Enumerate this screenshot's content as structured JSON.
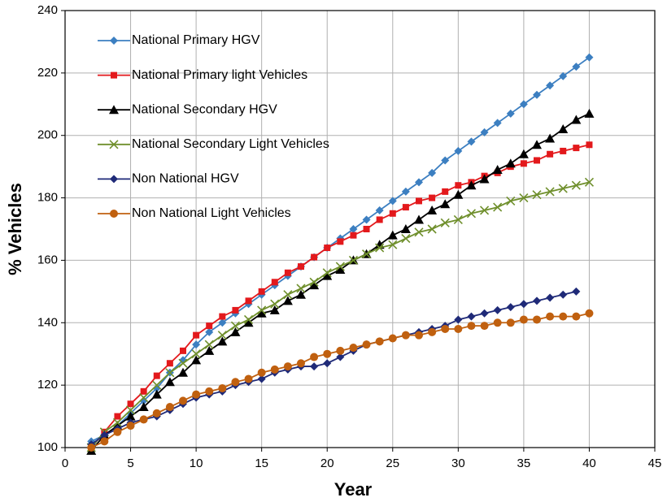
{
  "chart_data": {
    "type": "line",
    "xlabel": "Year",
    "ylabel": "% Vehicles",
    "x": [
      2,
      3,
      4,
      5,
      6,
      7,
      8,
      9,
      10,
      11,
      12,
      13,
      14,
      15,
      16,
      17,
      18,
      19,
      20,
      21,
      22,
      23,
      24,
      25,
      26,
      27,
      28,
      29,
      30,
      31,
      32,
      33,
      34,
      35,
      36,
      37,
      38,
      39,
      40
    ],
    "series": [
      {
        "name": "National Primary HGV",
        "color": "#3c7fc1",
        "marker": "diamond",
        "values": [
          102,
          104,
          107,
          111,
          115,
          119,
          124,
          128,
          133,
          137,
          140,
          143,
          146,
          149,
          152,
          155,
          158,
          161,
          164,
          167,
          170,
          173,
          176,
          179,
          182,
          185,
          188,
          192,
          195,
          198,
          201,
          204,
          207,
          210,
          213,
          216,
          219,
          222,
          225
        ]
      },
      {
        "name": "National Primary light Vehicles",
        "color": "#e3191c",
        "marker": "square",
        "values": [
          100,
          105,
          110,
          114,
          118,
          123,
          127,
          131,
          136,
          139,
          142,
          144,
          147,
          150,
          153,
          156,
          158,
          161,
          164,
          166,
          168,
          170,
          173,
          175,
          177,
          179,
          180,
          182,
          184,
          185,
          187,
          188,
          190,
          191,
          192,
          194,
          195,
          196,
          197
        ]
      },
      {
        "name": "National Secondary HGV",
        "color": "#000000",
        "marker": "triangle",
        "values": [
          99,
          104,
          107,
          110,
          113,
          117,
          121,
          124,
          128,
          131,
          134,
          137,
          140,
          143,
          144,
          147,
          149,
          152,
          155,
          157,
          160,
          162,
          165,
          168,
          170,
          173,
          176,
          178,
          181,
          184,
          186,
          189,
          191,
          194,
          197,
          199,
          202,
          205,
          207
        ]
      },
      {
        "name": "National Secondary Light Vehicles",
        "color": "#6f8f2c",
        "marker": "x",
        "values": [
          100,
          105,
          108,
          112,
          116,
          120,
          124,
          127,
          130,
          133,
          136,
          139,
          141,
          144,
          146,
          149,
          151,
          153,
          156,
          158,
          160,
          162,
          164,
          165,
          167,
          169,
          170,
          172,
          173,
          175,
          176,
          177,
          179,
          180,
          181,
          182,
          183,
          184,
          185
        ]
      },
      {
        "name": "Non National HGV",
        "color": "#1f2a78",
        "marker": "diamond",
        "values": [
          101,
          104,
          106,
          108,
          109,
          110,
          112,
          114,
          116,
          117,
          118,
          120,
          121,
          122,
          124,
          125,
          126,
          126,
          127,
          129,
          131,
          133,
          134,
          135,
          136,
          137,
          138,
          139,
          141,
          142,
          143,
          144,
          145,
          146,
          147,
          148,
          149,
          150,
          null
        ]
      },
      {
        "name": "Non National Light Vehicles",
        "color": "#c0600f",
        "marker": "circle",
        "values": [
          100,
          102,
          105,
          107,
          109,
          111,
          113,
          115,
          117,
          118,
          119,
          121,
          122,
          124,
          125,
          126,
          127,
          129,
          130,
          131,
          132,
          133,
          134,
          135,
          136,
          136,
          137,
          138,
          138,
          139,
          139,
          140,
          140,
          141,
          141,
          142,
          142,
          142,
          143
        ]
      }
    ],
    "xlim": [
      0,
      45
    ],
    "xticks": [
      0,
      5,
      10,
      15,
      20,
      25,
      30,
      35,
      40,
      45
    ],
    "ylim": [
      100,
      240
    ],
    "yticks": [
      100,
      120,
      140,
      160,
      180,
      200,
      220,
      240
    ],
    "grid": true,
    "legend": "upper left"
  }
}
